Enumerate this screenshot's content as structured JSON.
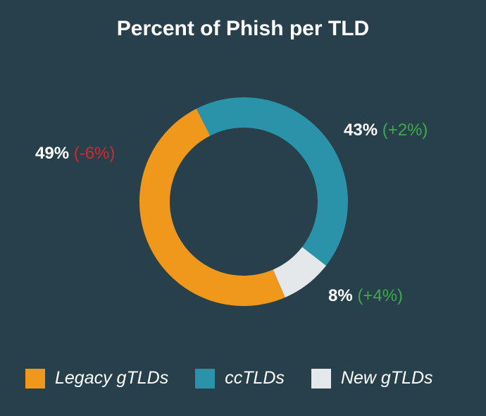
{
  "chart_data": {
    "type": "pie",
    "title": "Percent of Phish per TLD",
    "donut": true,
    "slices": [
      {
        "name": "ccTLDs",
        "value": 43,
        "label": "43%",
        "change": "(+2%)",
        "change_dir": "up",
        "color": "#2a93aa"
      },
      {
        "name": "New gTLDs",
        "value": 8,
        "label": "8%",
        "change": "(+4%)",
        "change_dir": "up",
        "color": "#e4e8eb"
      },
      {
        "name": "Legacy gTLDs",
        "value": 49,
        "label": "49%",
        "change": "(-6%)",
        "change_dir": "down",
        "color": "#f0981c"
      }
    ],
    "legend": [
      "Legacy gTLDs",
      "ccTLDs",
      "New gTLDs"
    ],
    "legend_placement": "bottom",
    "colors": {
      "up": "#3daa4a",
      "down": "#d9262b",
      "background": "#27404c"
    }
  }
}
